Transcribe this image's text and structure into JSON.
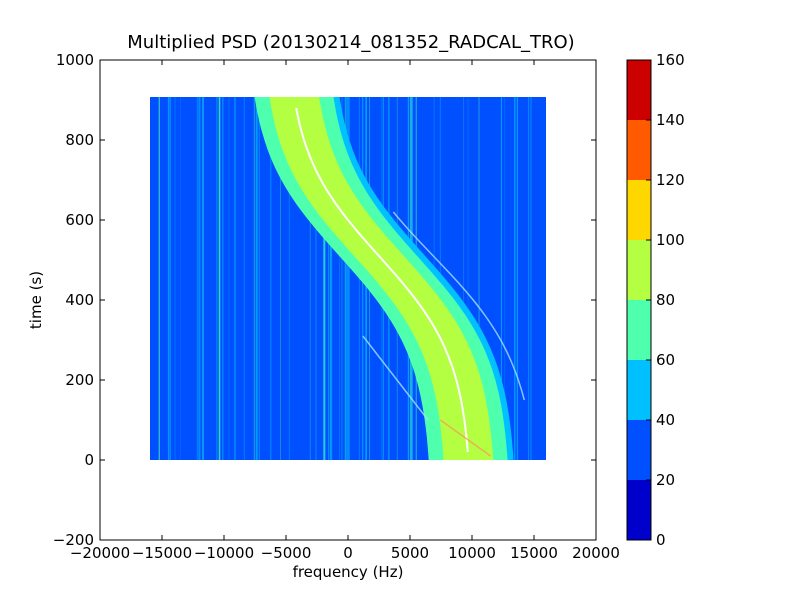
{
  "chart_data": {
    "type": "heatmap",
    "title": "Multiplied PSD (20130214_081352_RADCAL_TRO)",
    "xlabel": "frequency (Hz)",
    "ylabel": "time (s)",
    "xlim": [
      -20000,
      20000
    ],
    "ylim": [
      -200,
      1000
    ],
    "x_ticks": [
      "−20000",
      "−15000",
      "−10000",
      "−5000",
      "0",
      "5000",
      "10000",
      "15000",
      "20000"
    ],
    "y_ticks": [
      "−200",
      "0",
      "200",
      "400",
      "600",
      "800",
      "1000"
    ],
    "data_extent": {
      "x": [
        -16000,
        16000
      ],
      "y": [
        0,
        910
      ]
    },
    "colorbar": {
      "range": [
        0,
        160
      ],
      "ticks": [
        "0",
        "20",
        "40",
        "60",
        "80",
        "100",
        "120",
        "140",
        "160"
      ],
      "levels": [
        {
          "from": 0,
          "to": 20,
          "color": "#0000cd"
        },
        {
          "from": 20,
          "to": 40,
          "color": "#0050ff"
        },
        {
          "from": 40,
          "to": 60,
          "color": "#00c0ff"
        },
        {
          "from": 60,
          "to": 80,
          "color": "#4effad"
        },
        {
          "from": 80,
          "to": 100,
          "color": "#b5ff42"
        },
        {
          "from": 100,
          "to": 120,
          "color": "#ffd700"
        },
        {
          "from": 120,
          "to": 140,
          "color": "#ff5a00"
        },
        {
          "from": 140,
          "to": 160,
          "color": "#cd0000"
        }
      ]
    },
    "doppler_curve": {
      "description_points": [
        {
          "x": -5000,
          "y": 880
        },
        {
          "x": -3200,
          "y": 680
        },
        {
          "x": 0,
          "y": 510
        },
        {
          "x": 4000,
          "y": 390
        },
        {
          "x": 7500,
          "y": 240
        },
        {
          "x": 10000,
          "y": 20
        }
      ]
    }
  }
}
